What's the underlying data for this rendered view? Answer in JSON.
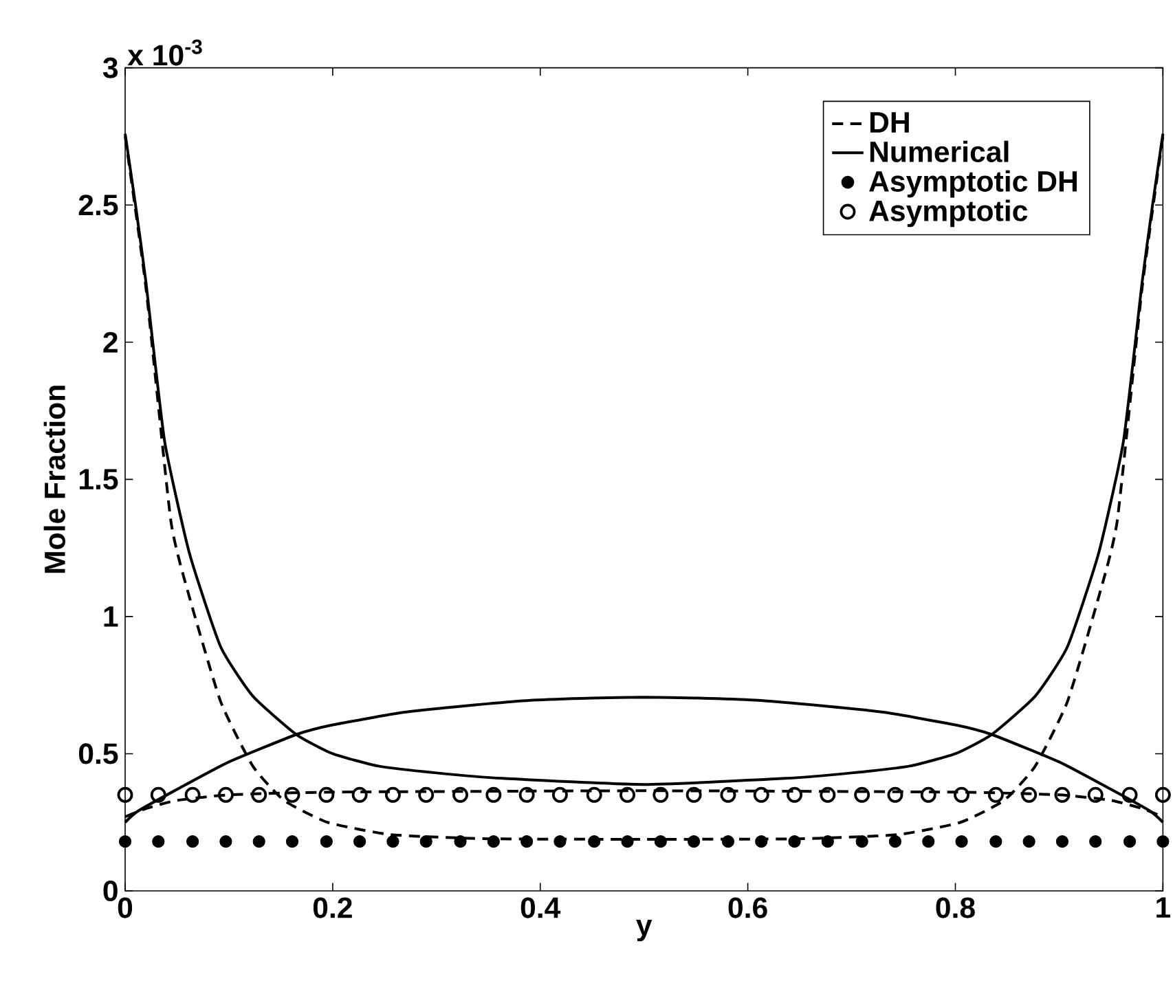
{
  "chart_data": {
    "type": "line",
    "xlabel": "y",
    "ylabel": "Mole Fraction",
    "annotations": [
      "x 10$^{-3}$"
    ],
    "xlim": [
      0,
      1
    ],
    "ylim": [
      0,
      3
    ],
    "xticks": [
      0,
      0.2,
      0.4,
      0.6,
      0.8,
      1
    ],
    "yticks": [
      0,
      0.5,
      1,
      1.5,
      2,
      2.5,
      3
    ],
    "legend": "top right",
    "series": [
      {
        "name": "DH",
        "line_style": "dashed",
        "color": "#000000",
        "x": [
          0,
          0.02,
          0.044,
          0.062,
          0.092,
          0.123,
          0.153,
          0.195,
          0.256,
          0.35,
          0.5,
          0.65,
          0.744,
          0.805,
          0.847,
          0.877,
          0.908,
          0.938,
          0.956,
          0.98,
          1
        ],
        "values": [
          2.75,
          2.2,
          1.35,
          1.07,
          0.69,
          0.455,
          0.33,
          0.25,
          0.205,
          0.19,
          0.188,
          0.19,
          0.205,
          0.25,
          0.33,
          0.455,
          0.69,
          1.07,
          1.35,
          2.2,
          2.75
        ]
      },
      {
        "line_style": "dashed",
        "color": "#000000",
        "x": [
          0,
          0.02,
          0.05,
          0.1,
          0.2,
          0.5,
          0.8,
          0.9,
          0.95,
          0.98,
          1
        ],
        "values": [
          0.27,
          0.3,
          0.33,
          0.35,
          0.36,
          0.365,
          0.36,
          0.35,
          0.33,
          0.3,
          0.27
        ]
      },
      {
        "name": "Numerical",
        "line_style": "solid",
        "color": "#000000",
        "x": [
          0,
          0.01,
          0.02,
          0.038,
          0.062,
          0.092,
          0.123,
          0.165,
          0.2,
          0.244,
          0.3,
          0.364,
          0.5,
          0.636,
          0.7,
          0.756,
          0.8,
          0.835,
          0.877,
          0.908,
          0.938,
          0.962,
          0.98,
          0.99,
          1
        ],
        "values": [
          2.76,
          2.5,
          2.22,
          1.64,
          1.23,
          0.89,
          0.71,
          0.57,
          0.5,
          0.455,
          0.43,
          0.41,
          0.388,
          0.41,
          0.43,
          0.455,
          0.5,
          0.57,
          0.71,
          0.89,
          1.23,
          1.64,
          2.22,
          2.5,
          2.76
        ]
      },
      {
        "line_style": "solid",
        "color": "#000000",
        "x": [
          0,
          0.012,
          0.05,
          0.1,
          0.165,
          0.2,
          0.267,
          0.33,
          0.393,
          0.45,
          0.5,
          0.55,
          0.607,
          0.67,
          0.733,
          0.8,
          0.835,
          0.9,
          0.95,
          0.988,
          1
        ],
        "values": [
          0.25,
          0.29,
          0.37,
          0.47,
          0.57,
          0.605,
          0.65,
          0.675,
          0.695,
          0.703,
          0.706,
          0.703,
          0.695,
          0.675,
          0.65,
          0.605,
          0.57,
          0.47,
          0.37,
          0.29,
          0.25
        ]
      },
      {
        "name": "Asymptotic DH",
        "type": "scatter",
        "marker": "circle",
        "color": "#000000",
        "x": [
          0,
          0.032,
          0.065,
          0.097,
          0.129,
          0.161,
          0.194,
          0.226,
          0.258,
          0.29,
          0.323,
          0.355,
          0.387,
          0.419,
          0.452,
          0.484,
          0.516,
          0.548,
          0.581,
          0.613,
          0.645,
          0.677,
          0.71,
          0.742,
          0.774,
          0.806,
          0.839,
          0.871,
          0.903,
          0.935,
          0.968,
          1
        ],
        "values": [
          0.18,
          0.18,
          0.18,
          0.18,
          0.18,
          0.18,
          0.18,
          0.18,
          0.18,
          0.18,
          0.18,
          0.18,
          0.18,
          0.18,
          0.18,
          0.18,
          0.18,
          0.18,
          0.18,
          0.18,
          0.18,
          0.18,
          0.18,
          0.18,
          0.18,
          0.18,
          0.18,
          0.18,
          0.18,
          0.18,
          0.18,
          0.18
        ]
      },
      {
        "name": "Asymptotic",
        "type": "scatter",
        "marker": "open circle",
        "color": "#000000",
        "x": [
          0,
          0.032,
          0.065,
          0.097,
          0.129,
          0.161,
          0.194,
          0.226,
          0.258,
          0.29,
          0.323,
          0.355,
          0.387,
          0.419,
          0.452,
          0.484,
          0.516,
          0.548,
          0.581,
          0.613,
          0.645,
          0.677,
          0.71,
          0.742,
          0.774,
          0.806,
          0.839,
          0.871,
          0.903,
          0.935,
          0.968,
          1
        ],
        "values": [
          0.35,
          0.35,
          0.35,
          0.35,
          0.35,
          0.35,
          0.35,
          0.35,
          0.35,
          0.35,
          0.35,
          0.35,
          0.35,
          0.35,
          0.35,
          0.35,
          0.35,
          0.35,
          0.35,
          0.35,
          0.35,
          0.35,
          0.35,
          0.35,
          0.35,
          0.35,
          0.35,
          0.35,
          0.35,
          0.35,
          0.35,
          0.35
        ]
      }
    ]
  }
}
